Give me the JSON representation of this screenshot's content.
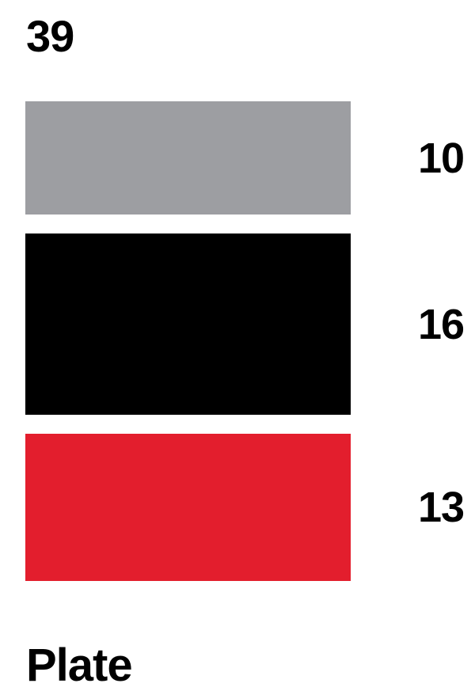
{
  "chart_data": {
    "type": "bar",
    "stacked": true,
    "orientation": "vertical",
    "categories": [
      "Plate"
    ],
    "total": "39",
    "series": [
      {
        "values": [
          10
        ],
        "label": "10",
        "color": "#9d9ea2"
      },
      {
        "values": [
          16
        ],
        "label": "16",
        "color": "#000000"
      },
      {
        "values": [
          13
        ],
        "label": "13",
        "color": "#e31e2d"
      }
    ],
    "legend": "none",
    "grid": false
  }
}
